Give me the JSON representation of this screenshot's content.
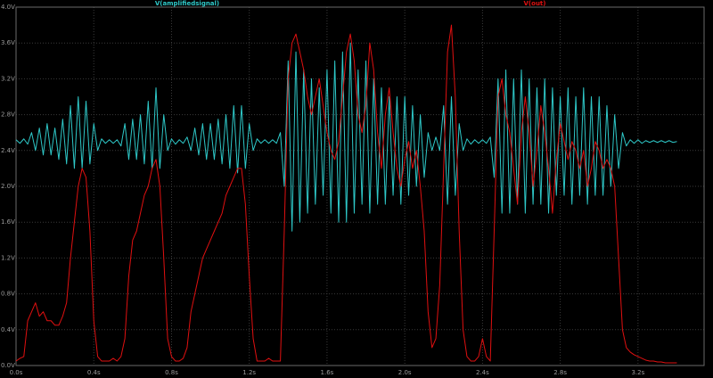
{
  "chart_data": {
    "type": "line",
    "x": [
      0,
      0.02,
      0.04,
      0.06,
      0.08,
      0.1,
      0.12,
      0.14,
      0.16,
      0.18,
      0.2,
      0.22,
      0.24,
      0.26,
      0.28,
      0.3,
      0.32,
      0.34,
      0.36,
      0.38,
      0.4,
      0.42,
      0.44,
      0.46,
      0.48,
      0.5,
      0.52,
      0.54,
      0.56,
      0.58,
      0.6,
      0.62,
      0.64,
      0.66,
      0.68,
      0.7,
      0.72,
      0.74,
      0.76,
      0.78,
      0.8,
      0.82,
      0.84,
      0.86,
      0.88,
      0.9,
      0.92,
      0.94,
      0.96,
      0.98,
      1.0,
      1.02,
      1.04,
      1.06,
      1.08,
      1.1,
      1.12,
      1.14,
      1.16,
      1.18,
      1.2,
      1.22,
      1.24,
      1.26,
      1.28,
      1.3,
      1.32,
      1.34,
      1.36,
      1.38,
      1.4,
      1.42,
      1.44,
      1.46,
      1.48,
      1.5,
      1.52,
      1.54,
      1.56,
      1.58,
      1.6,
      1.62,
      1.64,
      1.66,
      1.68,
      1.7,
      1.72,
      1.74,
      1.76,
      1.78,
      1.8,
      1.82,
      1.84,
      1.86,
      1.88,
      1.9,
      1.92,
      1.94,
      1.96,
      1.98,
      2.0,
      2.02,
      2.04,
      2.06,
      2.08,
      2.1,
      2.12,
      2.14,
      2.16,
      2.18,
      2.2,
      2.22,
      2.24,
      2.26,
      2.28,
      2.3,
      2.32,
      2.34,
      2.36,
      2.38,
      2.4,
      2.42,
      2.44,
      2.46,
      2.48,
      2.5,
      2.52,
      2.54,
      2.56,
      2.58,
      2.6,
      2.62,
      2.64,
      2.66,
      2.68,
      2.7,
      2.72,
      2.74,
      2.76,
      2.78,
      2.8,
      2.82,
      2.84,
      2.86,
      2.88,
      2.9,
      2.92,
      2.94,
      2.96,
      2.98,
      3.0,
      3.02,
      3.04,
      3.06,
      3.08,
      3.1,
      3.12,
      3.14,
      3.16,
      3.18,
      3.2,
      3.22,
      3.24,
      3.26,
      3.28,
      3.3,
      3.32,
      3.34,
      3.36,
      3.38,
      3.4
    ],
    "xlim": [
      0,
      3.54
    ],
    "ylim": [
      0,
      4
    ],
    "xticks": [
      {
        "value": 0,
        "label": "0.0s"
      },
      {
        "value": 0.4,
        "label": "0.4s"
      },
      {
        "value": 0.8,
        "label": "0.8s"
      },
      {
        "value": 1.2,
        "label": "1.2s"
      },
      {
        "value": 1.6,
        "label": "1.6s"
      },
      {
        "value": 2.0,
        "label": "2.0s"
      },
      {
        "value": 2.4,
        "label": "2.4s"
      },
      {
        "value": 2.8,
        "label": "2.8s"
      },
      {
        "value": 3.2,
        "label": "3.2s"
      }
    ],
    "yticks": [
      {
        "value": 0,
        "label": "0.0V"
      },
      {
        "value": 0.4,
        "label": "0.4V"
      },
      {
        "value": 0.8,
        "label": "0.8V"
      },
      {
        "value": 1.2,
        "label": "1.2V"
      },
      {
        "value": 1.6,
        "label": "1.6V"
      },
      {
        "value": 2.0,
        "label": "2.0V"
      },
      {
        "value": 2.4,
        "label": "2.4V"
      },
      {
        "value": 2.8,
        "label": "2.8V"
      },
      {
        "value": 3.2,
        "label": "3.2V"
      },
      {
        "value": 3.6,
        "label": "3.6V"
      },
      {
        "value": 4.0,
        "label": "4.0V"
      }
    ],
    "grid": true,
    "series": [
      {
        "name": "V(amplifiedsignal)",
        "color": "#2ec8c8",
        "values": [
          2.52,
          2.48,
          2.53,
          2.47,
          2.6,
          2.4,
          2.65,
          2.35,
          2.7,
          2.35,
          2.65,
          2.3,
          2.75,
          2.25,
          2.9,
          2.2,
          3.0,
          2.2,
          2.95,
          2.25,
          2.7,
          2.4,
          2.53,
          2.48,
          2.52,
          2.48,
          2.52,
          2.45,
          2.7,
          2.3,
          2.75,
          2.3,
          2.8,
          2.25,
          2.95,
          2.2,
          3.1,
          2.2,
          2.8,
          2.4,
          2.53,
          2.47,
          2.52,
          2.48,
          2.55,
          2.4,
          2.65,
          2.35,
          2.7,
          2.3,
          2.7,
          2.3,
          2.75,
          2.25,
          2.8,
          2.2,
          2.9,
          2.15,
          2.9,
          2.2,
          2.7,
          2.4,
          2.53,
          2.48,
          2.52,
          2.48,
          2.52,
          2.48,
          2.6,
          2.0,
          3.4,
          1.5,
          3.5,
          1.6,
          3.3,
          1.7,
          3.2,
          1.8,
          3.1,
          1.9,
          3.3,
          1.7,
          3.4,
          1.6,
          3.5,
          1.6,
          3.6,
          1.7,
          3.3,
          1.8,
          3.4,
          1.7,
          3.2,
          1.8,
          3.1,
          1.8,
          3.0,
          1.9,
          3.0,
          1.8,
          3.0,
          1.9,
          2.9,
          2.0,
          2.8,
          2.1,
          2.6,
          2.4,
          2.55,
          2.4,
          2.9,
          1.8,
          3.0,
          1.9,
          2.7,
          2.4,
          2.53,
          2.47,
          2.52,
          2.48,
          2.52,
          2.48,
          2.55,
          2.1,
          3.2,
          1.7,
          3.3,
          1.7,
          3.2,
          1.8,
          3.3,
          1.7,
          3.2,
          1.8,
          3.1,
          1.8,
          3.2,
          1.7,
          3.1,
          1.9,
          3.0,
          1.9,
          3.1,
          1.8,
          3.0,
          1.9,
          3.1,
          1.8,
          3.0,
          1.9,
          3.0,
          1.9,
          2.9,
          2.0,
          2.8,
          2.2,
          2.6,
          2.45,
          2.52,
          2.48,
          2.52,
          2.48,
          2.51,
          2.49,
          2.51,
          2.49,
          2.51,
          2.49,
          2.51,
          2.49,
          2.5
        ]
      },
      {
        "name": "V(out)",
        "color": "#e01010",
        "values": [
          0.05,
          0.08,
          0.1,
          0.5,
          0.6,
          0.7,
          0.55,
          0.6,
          0.5,
          0.5,
          0.45,
          0.45,
          0.55,
          0.7,
          1.2,
          1.6,
          2.0,
          2.2,
          2.1,
          1.5,
          0.5,
          0.1,
          0.05,
          0.05,
          0.05,
          0.08,
          0.05,
          0.1,
          0.3,
          1.0,
          1.4,
          1.5,
          1.7,
          1.9,
          2.0,
          2.2,
          2.3,
          2.0,
          1.2,
          0.3,
          0.1,
          0.05,
          0.05,
          0.08,
          0.2,
          0.6,
          0.8,
          1.0,
          1.2,
          1.3,
          1.4,
          1.5,
          1.6,
          1.7,
          1.9,
          2.0,
          2.1,
          2.2,
          2.2,
          1.8,
          1.0,
          0.3,
          0.05,
          0.05,
          0.05,
          0.08,
          0.05,
          0.05,
          0.05,
          1.5,
          3.2,
          3.6,
          3.7,
          3.5,
          3.3,
          3.0,
          2.8,
          3.0,
          3.2,
          2.9,
          2.6,
          2.4,
          2.3,
          2.5,
          3.0,
          3.5,
          3.7,
          3.4,
          2.8,
          2.6,
          2.9,
          3.6,
          3.3,
          2.6,
          2.2,
          2.8,
          3.1,
          2.6,
          2.2,
          2.0,
          2.3,
          2.5,
          2.2,
          2.4,
          2.0,
          1.5,
          0.6,
          0.2,
          0.3,
          0.9,
          2.2,
          3.5,
          3.8,
          3.0,
          1.5,
          0.4,
          0.1,
          0.05,
          0.05,
          0.1,
          0.3,
          0.1,
          0.05,
          1.5,
          3.0,
          3.2,
          2.8,
          2.6,
          2.2,
          1.8,
          2.6,
          3.0,
          2.6,
          2.0,
          2.4,
          2.9,
          2.6,
          2.2,
          1.7,
          2.3,
          2.7,
          2.5,
          2.3,
          2.5,
          2.4,
          2.2,
          2.4,
          2.0,
          2.2,
          2.5,
          2.4,
          2.2,
          2.3,
          2.2,
          2.0,
          1.2,
          0.4,
          0.2,
          0.15,
          0.12,
          0.1,
          0.08,
          0.06,
          0.05,
          0.05,
          0.04,
          0.04,
          0.03,
          0.03,
          0.03,
          0.03
        ]
      }
    ]
  }
}
